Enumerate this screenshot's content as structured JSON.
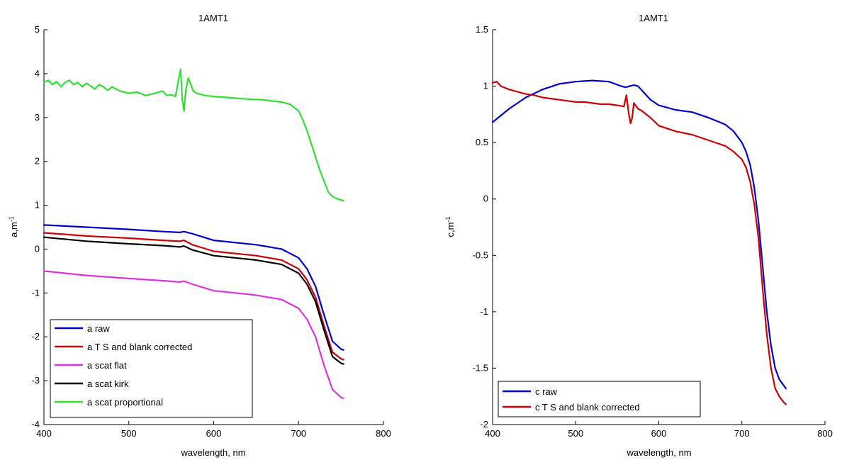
{
  "chart_data": [
    {
      "type": "line",
      "title": "1AMT1",
      "xlabel": "wavelength, nm",
      "ylabel_main": "a,m",
      "ylabel_sup": "-1",
      "xlim": [
        400,
        800
      ],
      "ylim": [
        -4,
        5
      ],
      "xticks": [
        400,
        500,
        600,
        700,
        800
      ],
      "yticks": [
        -4,
        -3,
        -2,
        -1,
        0,
        1,
        2,
        3,
        4,
        5
      ],
      "grid": false,
      "legend_position": "bottom-left",
      "series": [
        {
          "name": "a raw",
          "color": "#0000cc",
          "x": [
            400,
            450,
            500,
            540,
            560,
            565,
            575,
            600,
            650,
            680,
            700,
            710,
            720,
            730,
            740,
            750,
            753
          ],
          "y": [
            0.55,
            0.5,
            0.45,
            0.4,
            0.38,
            0.4,
            0.35,
            0.2,
            0.1,
            0.0,
            -0.2,
            -0.45,
            -0.85,
            -1.5,
            -2.1,
            -2.28,
            -2.3
          ]
        },
        {
          "name": "a T S and blank corrected",
          "color": "#cc0000",
          "x": [
            400,
            450,
            500,
            540,
            560,
            565,
            575,
            600,
            650,
            680,
            700,
            710,
            720,
            730,
            740,
            750,
            753
          ],
          "y": [
            0.37,
            0.3,
            0.25,
            0.2,
            0.18,
            0.2,
            0.1,
            -0.05,
            -0.15,
            -0.25,
            -0.45,
            -0.7,
            -1.1,
            -1.75,
            -2.35,
            -2.5,
            -2.52
          ]
        },
        {
          "name": "a scat flat",
          "color": "#dd33dd",
          "x": [
            400,
            450,
            500,
            540,
            560,
            565,
            575,
            600,
            650,
            680,
            700,
            710,
            720,
            730,
            740,
            750,
            753
          ],
          "y": [
            -0.5,
            -0.6,
            -0.67,
            -0.72,
            -0.75,
            -0.73,
            -0.8,
            -0.95,
            -1.05,
            -1.15,
            -1.35,
            -1.6,
            -2.0,
            -2.65,
            -3.2,
            -3.38,
            -3.4
          ]
        },
        {
          "name": "a scat kirk",
          "color": "#000000",
          "x": [
            400,
            450,
            500,
            540,
            560,
            565,
            575,
            600,
            650,
            680,
            700,
            710,
            720,
            730,
            740,
            750,
            753
          ],
          "y": [
            0.27,
            0.18,
            0.12,
            0.08,
            0.05,
            0.07,
            -0.02,
            -0.15,
            -0.25,
            -0.35,
            -0.55,
            -0.8,
            -1.2,
            -1.85,
            -2.45,
            -2.6,
            -2.62
          ]
        },
        {
          "name": "a scat proportional",
          "color": "#33dd33",
          "x": [
            400,
            405,
            410,
            415,
            420,
            425,
            430,
            435,
            440,
            445,
            450,
            455,
            460,
            465,
            470,
            475,
            480,
            490,
            500,
            510,
            520,
            530,
            540,
            545,
            550,
            555,
            558,
            561,
            563,
            565,
            567,
            570,
            573,
            576,
            580,
            590,
            600,
            620,
            640,
            660,
            680,
            690,
            700,
            705,
            710,
            715,
            720,
            725,
            730,
            735,
            740,
            745,
            750,
            753
          ],
          "y": [
            3.8,
            3.85,
            3.75,
            3.82,
            3.7,
            3.8,
            3.85,
            3.75,
            3.8,
            3.7,
            3.78,
            3.72,
            3.65,
            3.75,
            3.7,
            3.62,
            3.7,
            3.6,
            3.55,
            3.58,
            3.5,
            3.55,
            3.6,
            3.5,
            3.52,
            3.48,
            3.8,
            4.1,
            3.4,
            3.15,
            3.6,
            3.9,
            3.75,
            3.6,
            3.55,
            3.5,
            3.48,
            3.45,
            3.42,
            3.4,
            3.35,
            3.3,
            3.15,
            2.95,
            2.7,
            2.4,
            2.1,
            1.8,
            1.55,
            1.3,
            1.2,
            1.15,
            1.12,
            1.1
          ]
        }
      ]
    },
    {
      "type": "line",
      "title": "1AMT1",
      "xlabel": "wavelength, nm",
      "ylabel_main": "c,m",
      "ylabel_sup": "-1",
      "xlim": [
        400,
        800
      ],
      "ylim": [
        -2,
        1.5
      ],
      "xticks": [
        400,
        500,
        600,
        700,
        800
      ],
      "yticks": [
        -2,
        -1.5,
        -1,
        -0.5,
        0,
        0.5,
        1,
        1.5
      ],
      "grid": false,
      "legend_position": "bottom-left",
      "series": [
        {
          "name": "c raw",
          "color": "#0000cc",
          "x": [
            400,
            420,
            440,
            460,
            480,
            500,
            520,
            540,
            555,
            560,
            565,
            570,
            575,
            580,
            590,
            600,
            620,
            640,
            660,
            680,
            690,
            700,
            705,
            710,
            715,
            720,
            725,
            730,
            735,
            740,
            745,
            750,
            753
          ],
          "y": [
            0.68,
            0.8,
            0.9,
            0.97,
            1.02,
            1.04,
            1.05,
            1.04,
            1.0,
            0.99,
            1.0,
            1.01,
            1.0,
            0.96,
            0.88,
            0.83,
            0.79,
            0.77,
            0.72,
            0.66,
            0.6,
            0.5,
            0.42,
            0.3,
            0.1,
            -0.2,
            -0.6,
            -1.0,
            -1.3,
            -1.5,
            -1.6,
            -1.65,
            -1.68
          ]
        },
        {
          "name": "c T S and blank corrected",
          "color": "#cc0000",
          "x": [
            400,
            405,
            410,
            420,
            430,
            440,
            450,
            460,
            470,
            480,
            490,
            500,
            510,
            520,
            530,
            540,
            550,
            558,
            561,
            564,
            566,
            568,
            570,
            575,
            580,
            590,
            600,
            620,
            640,
            660,
            680,
            690,
            700,
            705,
            710,
            715,
            720,
            725,
            730,
            735,
            740,
            745,
            750,
            753
          ],
          "y": [
            1.03,
            1.04,
            1.0,
            0.97,
            0.95,
            0.93,
            0.92,
            0.9,
            0.89,
            0.88,
            0.87,
            0.86,
            0.86,
            0.85,
            0.84,
            0.84,
            0.83,
            0.82,
            0.92,
            0.75,
            0.67,
            0.72,
            0.85,
            0.8,
            0.78,
            0.72,
            0.65,
            0.6,
            0.57,
            0.52,
            0.47,
            0.42,
            0.35,
            0.28,
            0.15,
            -0.05,
            -0.35,
            -0.8,
            -1.2,
            -1.5,
            -1.68,
            -1.75,
            -1.8,
            -1.82
          ]
        }
      ]
    }
  ]
}
